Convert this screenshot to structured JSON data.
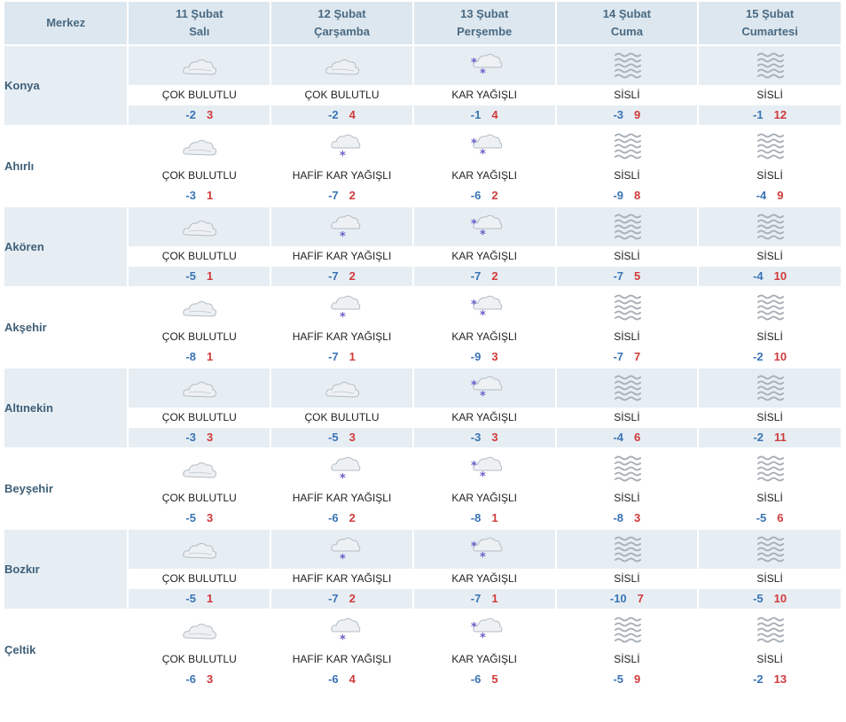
{
  "header": {
    "station_label": "Merkez",
    "days": [
      {
        "date": "11 Şubat",
        "weekday": "Salı"
      },
      {
        "date": "12 Şubat",
        "weekday": "Çarşamba"
      },
      {
        "date": "13 Şubat",
        "weekday": "Perşembe"
      },
      {
        "date": "14 Şubat",
        "weekday": "Cuma"
      },
      {
        "date": "15 Şubat",
        "weekday": "Cumartesi"
      }
    ]
  },
  "colors": {
    "header_bg": "#dde7ef",
    "row_shade": "#e6eef4",
    "min_temp": "#3a74b4",
    "max_temp": "#d03a3a"
  },
  "rows": [
    {
      "city": "Konya",
      "days": [
        {
          "icon": "cloudy-icon",
          "cond": "ÇOK BULUTLU",
          "min": "-2",
          "max": "3"
        },
        {
          "icon": "cloudy-icon",
          "cond": "ÇOK BULUTLU",
          "min": "-2",
          "max": "4"
        },
        {
          "icon": "snow-icon",
          "cond": "KAR YAĞIŞLI",
          "min": "-1",
          "max": "4"
        },
        {
          "icon": "fog-icon",
          "cond": "SİSLİ",
          "min": "-3",
          "max": "9"
        },
        {
          "icon": "fog-icon",
          "cond": "SİSLİ",
          "min": "-1",
          "max": "12"
        }
      ]
    },
    {
      "city": "Ahırlı",
      "days": [
        {
          "icon": "cloudy-icon",
          "cond": "ÇOK BULUTLU",
          "min": "-3",
          "max": "1"
        },
        {
          "icon": "light-snow-icon",
          "cond": "HAFİF KAR YAĞIŞLI",
          "min": "-7",
          "max": "2"
        },
        {
          "icon": "snow-icon",
          "cond": "KAR YAĞIŞLI",
          "min": "-6",
          "max": "2"
        },
        {
          "icon": "fog-icon",
          "cond": "SİSLİ",
          "min": "-9",
          "max": "8"
        },
        {
          "icon": "fog-icon",
          "cond": "SİSLİ",
          "min": "-4",
          "max": "9"
        }
      ]
    },
    {
      "city": "Akören",
      "days": [
        {
          "icon": "cloudy-icon",
          "cond": "ÇOK BULUTLU",
          "min": "-5",
          "max": "1"
        },
        {
          "icon": "light-snow-icon",
          "cond": "HAFİF KAR YAĞIŞLI",
          "min": "-7",
          "max": "2"
        },
        {
          "icon": "snow-icon",
          "cond": "KAR YAĞIŞLI",
          "min": "-7",
          "max": "2"
        },
        {
          "icon": "fog-icon",
          "cond": "SİSLİ",
          "min": "-7",
          "max": "5"
        },
        {
          "icon": "fog-icon",
          "cond": "SİSLİ",
          "min": "-4",
          "max": "10"
        }
      ]
    },
    {
      "city": "Akşehir",
      "days": [
        {
          "icon": "cloudy-icon",
          "cond": "ÇOK BULUTLU",
          "min": "-8",
          "max": "1"
        },
        {
          "icon": "light-snow-icon",
          "cond": "HAFİF KAR YAĞIŞLI",
          "min": "-7",
          "max": "1"
        },
        {
          "icon": "snow-icon",
          "cond": "KAR YAĞIŞLI",
          "min": "-9",
          "max": "3"
        },
        {
          "icon": "fog-icon",
          "cond": "SİSLİ",
          "min": "-7",
          "max": "7"
        },
        {
          "icon": "fog-icon",
          "cond": "SİSLİ",
          "min": "-2",
          "max": "10"
        }
      ]
    },
    {
      "city": "Altınekin",
      "days": [
        {
          "icon": "cloudy-icon",
          "cond": "ÇOK BULUTLU",
          "min": "-3",
          "max": "3"
        },
        {
          "icon": "cloudy-icon",
          "cond": "ÇOK BULUTLU",
          "min": "-5",
          "max": "3"
        },
        {
          "icon": "snow-icon",
          "cond": "KAR YAĞIŞLI",
          "min": "-3",
          "max": "3"
        },
        {
          "icon": "fog-icon",
          "cond": "SİSLİ",
          "min": "-4",
          "max": "6"
        },
        {
          "icon": "fog-icon",
          "cond": "SİSLİ",
          "min": "-2",
          "max": "11"
        }
      ]
    },
    {
      "city": "Beyşehir",
      "days": [
        {
          "icon": "cloudy-icon",
          "cond": "ÇOK BULUTLU",
          "min": "-5",
          "max": "3"
        },
        {
          "icon": "light-snow-icon",
          "cond": "HAFİF KAR YAĞIŞLI",
          "min": "-6",
          "max": "2"
        },
        {
          "icon": "snow-icon",
          "cond": "KAR YAĞIŞLI",
          "min": "-8",
          "max": "1"
        },
        {
          "icon": "fog-icon",
          "cond": "SİSLİ",
          "min": "-8",
          "max": "3"
        },
        {
          "icon": "fog-icon",
          "cond": "SİSLİ",
          "min": "-5",
          "max": "6"
        }
      ]
    },
    {
      "city": "Bozkır",
      "days": [
        {
          "icon": "cloudy-icon",
          "cond": "ÇOK BULUTLU",
          "min": "-5",
          "max": "1"
        },
        {
          "icon": "light-snow-icon",
          "cond": "HAFİF KAR YAĞIŞLI",
          "min": "-7",
          "max": "2"
        },
        {
          "icon": "snow-icon",
          "cond": "KAR YAĞIŞLI",
          "min": "-7",
          "max": "1"
        },
        {
          "icon": "fog-icon",
          "cond": "SİSLİ",
          "min": "-10",
          "max": "7"
        },
        {
          "icon": "fog-icon",
          "cond": "SİSLİ",
          "min": "-5",
          "max": "10"
        }
      ]
    },
    {
      "city": "Çeltik",
      "days": [
        {
          "icon": "cloudy-icon",
          "cond": "ÇOK BULUTLU",
          "min": "-6",
          "max": "3"
        },
        {
          "icon": "light-snow-icon",
          "cond": "HAFİF KAR YAĞIŞLI",
          "min": "-6",
          "max": "4"
        },
        {
          "icon": "snow-icon",
          "cond": "KAR YAĞIŞLI",
          "min": "-6",
          "max": "5"
        },
        {
          "icon": "fog-icon",
          "cond": "SİSLİ",
          "min": "-5",
          "max": "9"
        },
        {
          "icon": "fog-icon",
          "cond": "SİSLİ",
          "min": "-2",
          "max": "13"
        }
      ]
    }
  ]
}
